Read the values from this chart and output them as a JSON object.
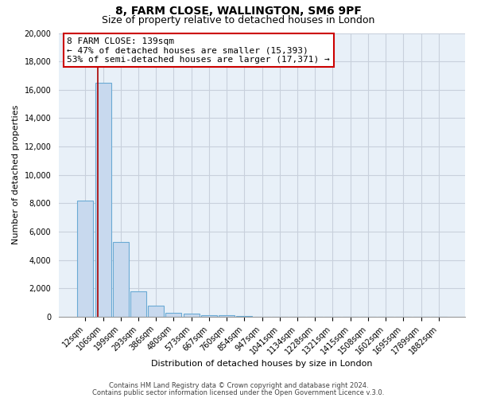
{
  "title": "8, FARM CLOSE, WALLINGTON, SM6 9PF",
  "subtitle": "Size of property relative to detached houses in London",
  "xlabel": "Distribution of detached houses by size in London",
  "ylabel": "Number of detached properties",
  "bar_color": "#c8d9ee",
  "bar_edge_color": "#6aaad4",
  "background_color": "#e8f0f8",
  "grid_color": "#d0d8e8",
  "categories": [
    "12sqm",
    "106sqm",
    "199sqm",
    "293sqm",
    "386sqm",
    "480sqm",
    "573sqm",
    "667sqm",
    "760sqm",
    "854sqm",
    "947sqm",
    "1041sqm",
    "1134sqm",
    "1228sqm",
    "1321sqm",
    "1415sqm",
    "1508sqm",
    "1602sqm",
    "1695sqm",
    "1789sqm",
    "1882sqm"
  ],
  "values": [
    8200,
    16500,
    5300,
    1800,
    800,
    300,
    200,
    130,
    100,
    60,
    0,
    0,
    0,
    0,
    0,
    0,
    0,
    0,
    0,
    0,
    0
  ],
  "ylim": [
    0,
    20000
  ],
  "yticks": [
    0,
    2000,
    4000,
    6000,
    8000,
    10000,
    12000,
    14000,
    16000,
    18000,
    20000
  ],
  "vline_color": "#aa0000",
  "annotation_text_line1": "8 FARM CLOSE: 139sqm",
  "annotation_text_line2": "← 47% of detached houses are smaller (15,393)",
  "annotation_text_line3": "53% of semi-detached houses are larger (17,371) →",
  "footer_line1": "Contains HM Land Registry data © Crown copyright and database right 2024.",
  "footer_line2": "Contains public sector information licensed under the Open Government Licence v.3.0.",
  "title_fontsize": 10,
  "subtitle_fontsize": 9,
  "tick_fontsize": 7,
  "ylabel_fontsize": 8,
  "xlabel_fontsize": 8,
  "annotation_fontsize": 8,
  "footer_fontsize": 6
}
